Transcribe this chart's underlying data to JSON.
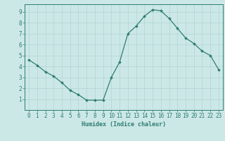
{
  "x": [
    0,
    1,
    2,
    3,
    4,
    5,
    6,
    7,
    8,
    9,
    10,
    11,
    12,
    13,
    14,
    15,
    16,
    17,
    18,
    19,
    20,
    21,
    22,
    23
  ],
  "y": [
    4.6,
    4.1,
    3.5,
    3.1,
    2.5,
    1.8,
    1.4,
    0.9,
    0.9,
    0.9,
    3.0,
    4.4,
    7.0,
    7.7,
    8.6,
    9.2,
    9.1,
    8.4,
    7.5,
    6.6,
    6.1,
    5.4,
    5.0,
    3.7
  ],
  "line_color": "#2e7d72",
  "marker": "D",
  "marker_size": 1.8,
  "bg_color": "#cce8e6",
  "grid_color": "#aed4d2",
  "xlabel": "Humidex (Indice chaleur)",
  "xlim": [
    -0.5,
    23.5
  ],
  "ylim": [
    0,
    9.7
  ],
  "xticks": [
    0,
    1,
    2,
    3,
    4,
    5,
    6,
    7,
    8,
    9,
    10,
    11,
    12,
    13,
    14,
    15,
    16,
    17,
    18,
    19,
    20,
    21,
    22,
    23
  ],
  "yticks": [
    1,
    2,
    3,
    4,
    5,
    6,
    7,
    8,
    9
  ],
  "tick_color": "#2e7d72",
  "label_color": "#2e7d72",
  "xlabel_fontsize": 6.0,
  "tick_fontsize": 5.5,
  "linewidth": 0.9
}
